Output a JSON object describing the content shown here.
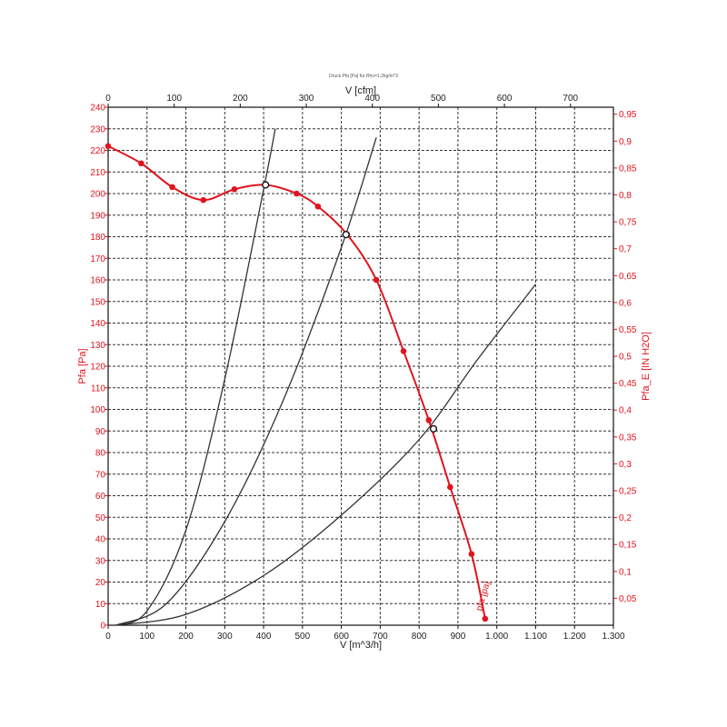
{
  "chart_data": {
    "type": "line",
    "title": "Druck Pfa [Pa] für Rho=1.2kg/m^3",
    "xlabel_bottom": "V [m^3/h]",
    "xlabel_top": "V [cfm]",
    "ylabel_left": "Pfa [Pa]",
    "ylabel_right": "Pfa_E [IN H2O]",
    "xlim": [
      0,
      1300
    ],
    "ylim": [
      0,
      240
    ],
    "x2lim": [
      0,
      765
    ],
    "y2lim": [
      0,
      0.963
    ],
    "x_ticks": [
      0,
      100,
      200,
      300,
      400,
      500,
      600,
      700,
      800,
      900,
      1000,
      1100,
      1200,
      1300
    ],
    "x_tick_labels": [
      "0",
      "100",
      "200",
      "300",
      "400",
      "500",
      "600",
      "700",
      "800",
      "900",
      "1.000",
      "1.100",
      "1.200",
      "1.300"
    ],
    "y_ticks": [
      0,
      10,
      20,
      30,
      40,
      50,
      60,
      70,
      80,
      90,
      100,
      110,
      120,
      130,
      140,
      150,
      160,
      170,
      180,
      190,
      200,
      210,
      220,
      230,
      240
    ],
    "y_tick_labels": [
      "0",
      "10",
      "20",
      "30",
      "40",
      "50",
      "60",
      "70",
      "80",
      "90",
      "100",
      "110",
      "120",
      "130",
      "140",
      "150",
      "160",
      "170",
      "180",
      "190",
      "200",
      "210",
      "220",
      "230",
      "240"
    ],
    "x2_ticks": [
      0,
      100,
      200,
      300,
      400,
      500,
      600,
      700
    ],
    "x2_tick_labels": [
      "0",
      "100",
      "200",
      "300",
      "400",
      "500",
      "600",
      "700"
    ],
    "y2_ticks": [
      0.05,
      0.1,
      0.15,
      0.2,
      0.25,
      0.3,
      0.35,
      0.4,
      0.45,
      0.5,
      0.55,
      0.6,
      0.65,
      0.7,
      0.75,
      0.8,
      0.85,
      0.9,
      0.95
    ],
    "y2_tick_labels": [
      "0,05",
      "0,1",
      "0,15",
      "0,2",
      "0,25",
      "0,3",
      "0,35",
      "0,4",
      "0,45",
      "0,5",
      "0,55",
      "0,6",
      "0,65",
      "0,7",
      "0,75",
      "0,8",
      "0,85",
      "0,9",
      "0,95"
    ],
    "grid": true,
    "fan_curve": {
      "name": "pfa [pa]",
      "color": "#e0141e",
      "points": [
        {
          "x": 0,
          "y": 222
        },
        {
          "x": 85,
          "y": 214
        },
        {
          "x": 165,
          "y": 203
        },
        {
          "x": 245,
          "y": 197
        },
        {
          "x": 325,
          "y": 202
        },
        {
          "x": 405,
          "y": 204
        },
        {
          "x": 485,
          "y": 200
        },
        {
          "x": 540,
          "y": 194
        },
        {
          "x": 615,
          "y": 181
        },
        {
          "x": 690,
          "y": 160
        },
        {
          "x": 760,
          "y": 127
        },
        {
          "x": 825,
          "y": 95
        },
        {
          "x": 880,
          "y": 64
        },
        {
          "x": 935,
          "y": 33
        },
        {
          "x": 970,
          "y": 3
        }
      ]
    },
    "system_curves": [
      {
        "color": "#333333",
        "points": [
          {
            "x": 20,
            "y": 0
          },
          {
            "x": 100,
            "y": 6.6
          },
          {
            "x": 200,
            "y": 44
          },
          {
            "x": 300,
            "y": 114
          },
          {
            "x": 400,
            "y": 202
          },
          {
            "x": 430,
            "y": 230
          }
        ]
      },
      {
        "color": "#333333",
        "points": [
          {
            "x": 20,
            "y": 0
          },
          {
            "x": 150,
            "y": 10
          },
          {
            "x": 300,
            "y": 48
          },
          {
            "x": 450,
            "y": 104
          },
          {
            "x": 600,
            "y": 175
          },
          {
            "x": 690,
            "y": 226
          }
        ]
      },
      {
        "color": "#333333",
        "points": [
          {
            "x": 20,
            "y": 0
          },
          {
            "x": 200,
            "y": 5
          },
          {
            "x": 400,
            "y": 23
          },
          {
            "x": 600,
            "y": 51
          },
          {
            "x": 800,
            "y": 86
          },
          {
            "x": 950,
            "y": 123
          },
          {
            "x": 1100,
            "y": 158
          }
        ]
      }
    ],
    "operating_points": [
      {
        "x": 405,
        "y": 204
      },
      {
        "x": 612,
        "y": 181
      },
      {
        "x": 837,
        "y": 91
      }
    ]
  }
}
